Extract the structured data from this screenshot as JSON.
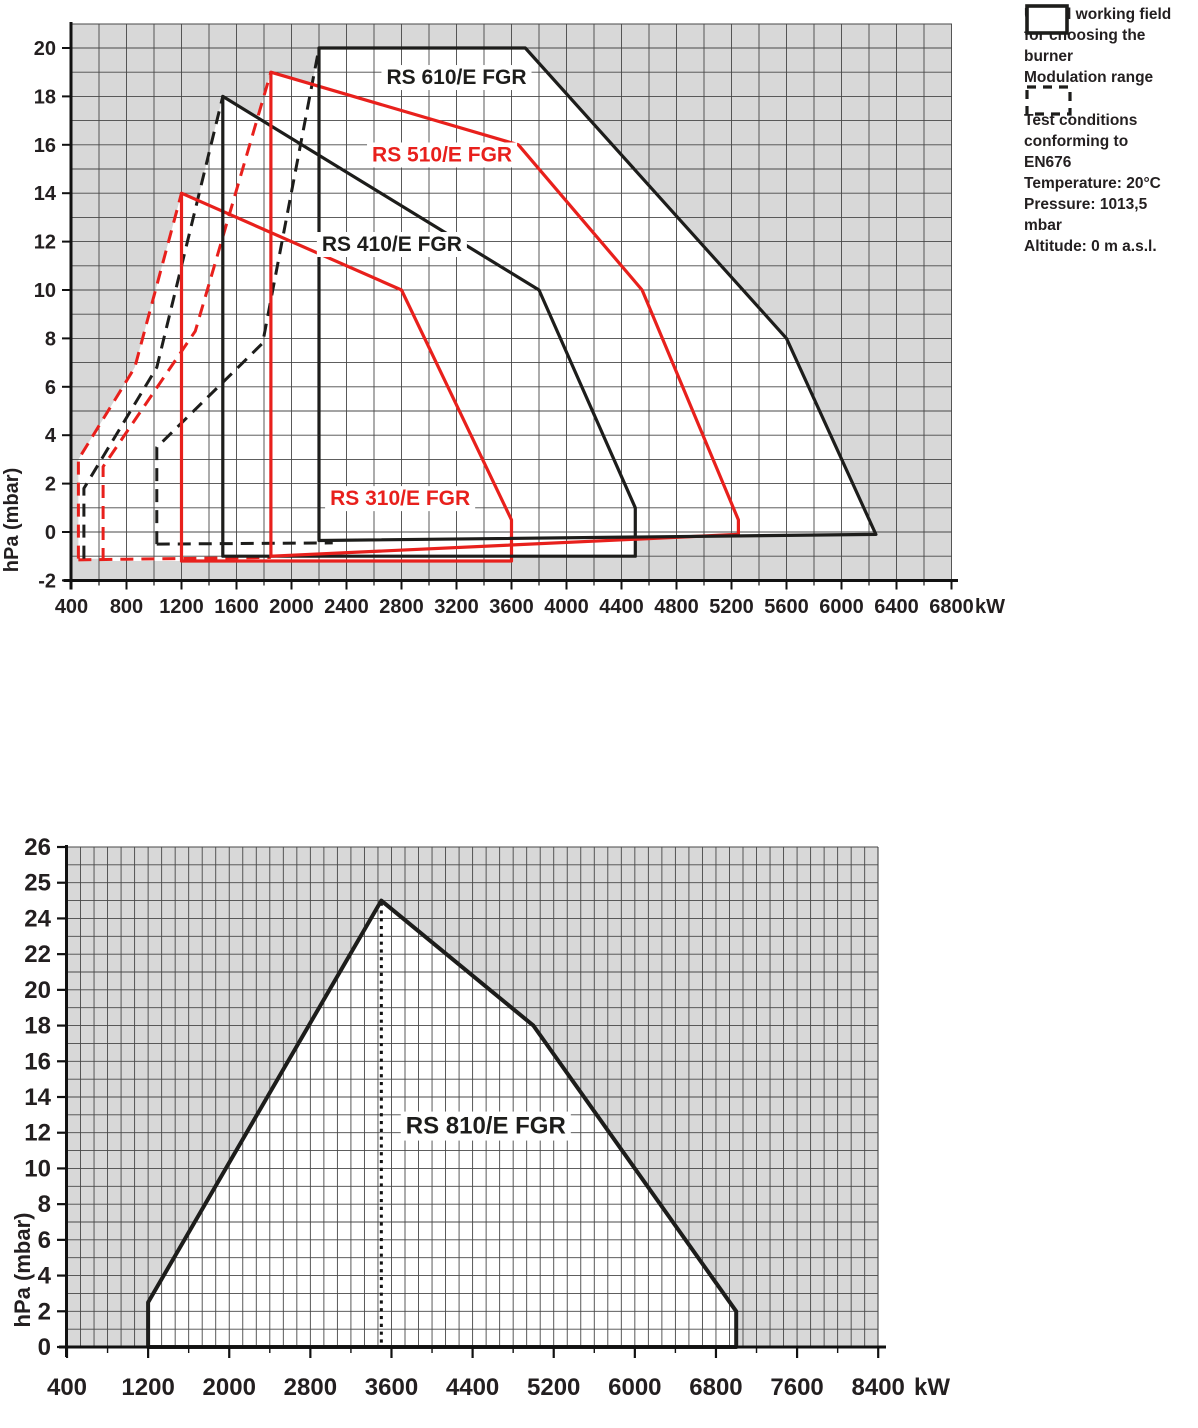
{
  "colors": {
    "red": "#e8201c",
    "black": "#1d1d1b",
    "grid": "#474747",
    "plot_bg": "#d8d8d8",
    "field_bg": "#ffffff",
    "text": "#231f20"
  },
  "legend": {
    "useful_field": [
      "Useful working field",
      "for choosing the",
      "burner"
    ],
    "modulation": [
      "Modulation range"
    ],
    "test_conditions": [
      "Test conditions",
      "conforming to",
      "EN676",
      "Temperature: 20°C",
      "Pressure: 1013,5",
      "mbar",
      "Altitude: 0 m a.s.l."
    ]
  },
  "chart_data": [
    {
      "id": "upper",
      "type": "area",
      "xlabel": "kW",
      "ylabel": "hPa (mbar)",
      "xlim": [
        400,
        6800
      ],
      "ylim": [
        -2,
        21
      ],
      "x_ticks": [
        400,
        800,
        1200,
        1600,
        2000,
        2400,
        2800,
        3200,
        3600,
        4000,
        4400,
        4800,
        5200,
        5600,
        6000,
        6400,
        6800
      ],
      "y_ticks": [
        20,
        18,
        16,
        14,
        12,
        10,
        8,
        6,
        4,
        2,
        0,
        -2
      ],
      "grid": true,
      "series": [
        {
          "name": "RS 310/E FGR",
          "color": "red",
          "points": [
            [
              1200,
              -1.2
            ],
            [
              1200,
              14
            ],
            [
              2800,
              10
            ],
            [
              3600,
              0.5
            ],
            [
              3600,
              -1.2
            ],
            [
              1200,
              -1.2
            ]
          ],
          "label_at": [
            2790,
            1.4
          ]
        },
        {
          "name": "RS 410/E FGR",
          "color": "black",
          "points": [
            [
              1500,
              -1
            ],
            [
              1500,
              18
            ],
            [
              3800,
              10
            ],
            [
              4500,
              1
            ],
            [
              4500,
              -1
            ],
            [
              1500,
              -1
            ]
          ],
          "label_at": [
            2730,
            11.9
          ]
        },
        {
          "name": "RS 510/E FGR",
          "color": "red",
          "points": [
            [
              1850,
              -1
            ],
            [
              1850,
              19
            ],
            [
              3650,
              16
            ],
            [
              4550,
              10
            ],
            [
              5250,
              0.5
            ],
            [
              5250,
              -0.1
            ],
            [
              1850,
              -1
            ]
          ],
          "label_at": [
            3095,
            15.6
          ]
        },
        {
          "name": "RS 610/E FGR",
          "color": "black",
          "points": [
            [
              2200,
              -0.35
            ],
            [
              2200,
              20
            ],
            [
              3700,
              20
            ],
            [
              5600,
              8
            ],
            [
              6250,
              -0.1
            ],
            [
              2200,
              -0.35
            ]
          ],
          "label_at": [
            3200,
            18.8
          ]
        }
      ],
      "modulation_ranges": [
        {
          "burner": "RS 310/E FGR",
          "color": "red",
          "points": [
            [
              450,
              -1.1
            ],
            [
              450,
              3.0
            ],
            [
              860,
              6.8
            ],
            [
              1200,
              14
            ]
          ]
        },
        {
          "burner": "RS 410/E FGR",
          "color": "black",
          "points": [
            [
              490,
              -1.1
            ],
            [
              490,
              1.8
            ],
            [
              1020,
              6.8
            ],
            [
              1500,
              18
            ]
          ]
        },
        {
          "burner": "RS 510/E FGR",
          "color": "red",
          "points": [
            [
              630,
              -1.2
            ],
            [
              630,
              2.7
            ],
            [
              1300,
              8.3
            ],
            [
              1850,
              19
            ]
          ]
        },
        {
          "burner": "RS 610/E FGR",
          "color": "black",
          "points": [
            [
              1020,
              -0.5
            ],
            [
              1020,
              3.5
            ],
            [
              1790,
              7.8
            ],
            [
              2200,
              20
            ]
          ]
        }
      ],
      "modulation_bottom_lines": [
        {
          "color": "red",
          "from": [
            450,
            -1.15
          ],
          "to": [
            1850,
            -1.05
          ]
        },
        {
          "color": "black",
          "from": [
            1020,
            -0.5
          ],
          "to": [
            2300,
            -0.45
          ]
        }
      ]
    },
    {
      "id": "lower",
      "type": "area",
      "xlabel": "kW",
      "ylabel": "hPa (mbar)",
      "xlim": [
        400,
        8400
      ],
      "ylim": [
        0,
        26
      ],
      "x_ticks": [
        400,
        1200,
        2000,
        2800,
        3600,
        4400,
        5200,
        6000,
        6800,
        7600,
        8400
      ],
      "y_ticks": [
        26,
        25,
        24,
        22,
        20,
        18,
        16,
        14,
        12,
        10,
        8,
        6,
        4,
        2,
        0
      ],
      "grid": true,
      "series": [
        {
          "name": "RS 810/E FGR",
          "color": "black",
          "points": [
            [
              1200,
              0
            ],
            [
              1200,
              2.5
            ],
            [
              3500,
              24.5
            ],
            [
              5000,
              18
            ],
            [
              7000,
              2
            ],
            [
              7000,
              0
            ],
            [
              1200,
              0
            ]
          ],
          "label_at": [
            4530,
            12.4
          ],
          "peak_marker_x": 3500,
          "peak": [
            3500,
            24.5
          ]
        }
      ]
    }
  ]
}
